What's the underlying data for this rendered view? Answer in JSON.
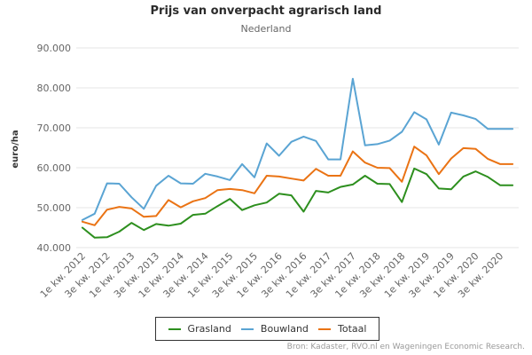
{
  "chart_data": {
    "type": "line",
    "title": "Prijs van onverpacht agrarisch land",
    "subtitle": "Nederland",
    "ylabel": "euro/ha",
    "xlabel": "",
    "ylim": [
      40000,
      90000
    ],
    "yticks": [
      40000,
      50000,
      60000,
      70000,
      80000,
      90000
    ],
    "ytick_labels": [
      "40.000",
      "50.000",
      "60.000",
      "70.000",
      "80.000",
      "90.000"
    ],
    "grid": true,
    "legend_position": "bottom",
    "categories": [
      "1e kw. 2012",
      "2e kw. 2012",
      "3e kw. 2012",
      "4e kw. 2012",
      "1e kw. 2013",
      "2e kw. 2013",
      "3e kw. 2013",
      "4e kw. 2013",
      "1e kw. 2014",
      "2e kw. 2014",
      "3e kw. 2014",
      "4e kw. 2014",
      "1e kw. 2015",
      "2e kw. 2015",
      "3e kw. 2015",
      "4e kw. 2015",
      "1e kw. 2016",
      "2e kw. 2016",
      "3e kw. 2016",
      "4e kw. 2016",
      "1e kw. 2017",
      "2e kw. 2017",
      "3e kw. 2017",
      "4e kw. 2017",
      "1e kw. 2018",
      "2e kw. 2018",
      "3e kw. 2018",
      "4e kw. 2018",
      "1e kw. 2019",
      "2e kw. 2019",
      "3e kw. 2019",
      "4e kw. 2019",
      "1e kw. 2020",
      "2e kw. 2020",
      "3e kw. 2020",
      "4e kw. 2020"
    ],
    "series": [
      {
        "name": "Grasland",
        "color": "#2d8f1e",
        "values": [
          45000,
          42500,
          42600,
          44000,
          46200,
          44400,
          45900,
          45500,
          46000,
          48200,
          48500,
          50400,
          52200,
          49400,
          50600,
          51300,
          53500,
          53100,
          49000,
          54200,
          53800,
          55200,
          55800,
          58000,
          56000,
          55900,
          51400,
          59800,
          58400,
          54800,
          54600,
          57800,
          59100,
          57700,
          55600,
          55600
        ]
      },
      {
        "name": "Bouwland",
        "color": "#5aa4d3",
        "values": [
          46900,
          48500,
          56100,
          56000,
          52600,
          49700,
          55500,
          58000,
          56100,
          56000,
          58500,
          57800,
          56900,
          60900,
          57600,
          66100,
          63000,
          66500,
          67800,
          66700,
          62100,
          62100,
          82300,
          65600,
          65900,
          66800,
          69000,
          73900,
          72100,
          65800,
          73800,
          73100,
          72200,
          69700,
          69700,
          69700
        ]
      },
      {
        "name": "Totaal",
        "color": "#ea7314",
        "values": [
          46500,
          45600,
          49500,
          50200,
          49800,
          47700,
          47900,
          51900,
          50100,
          51600,
          52400,
          54400,
          54700,
          54400,
          53600,
          58000,
          57800,
          57300,
          56800,
          59700,
          58000,
          58000,
          64100,
          61300,
          60000,
          59900,
          56500,
          65300,
          63100,
          58400,
          62300,
          64900,
          64700,
          62200,
          60900,
          60900
        ]
      }
    ],
    "x_tick_labels": [
      "1e kw. 2012",
      "3e kw. 2012",
      "1e kw. 2013",
      "3e kw. 2013",
      "1e kw. 2014",
      "3e kw. 2014",
      "1e kw. 2015",
      "3e kw. 2015",
      "1e kw. 2016",
      "3e kw. 2016",
      "1e kw. 2017",
      "3e kw. 2017",
      "1e kw. 2018",
      "3e kw. 2018",
      "1e kw. 2019",
      "3e kw. 2019",
      "1e kw. 2020",
      "3e kw. 2020"
    ]
  },
  "source": "Bron: Kadaster, RVO.nl en Wageningen Economic Research."
}
